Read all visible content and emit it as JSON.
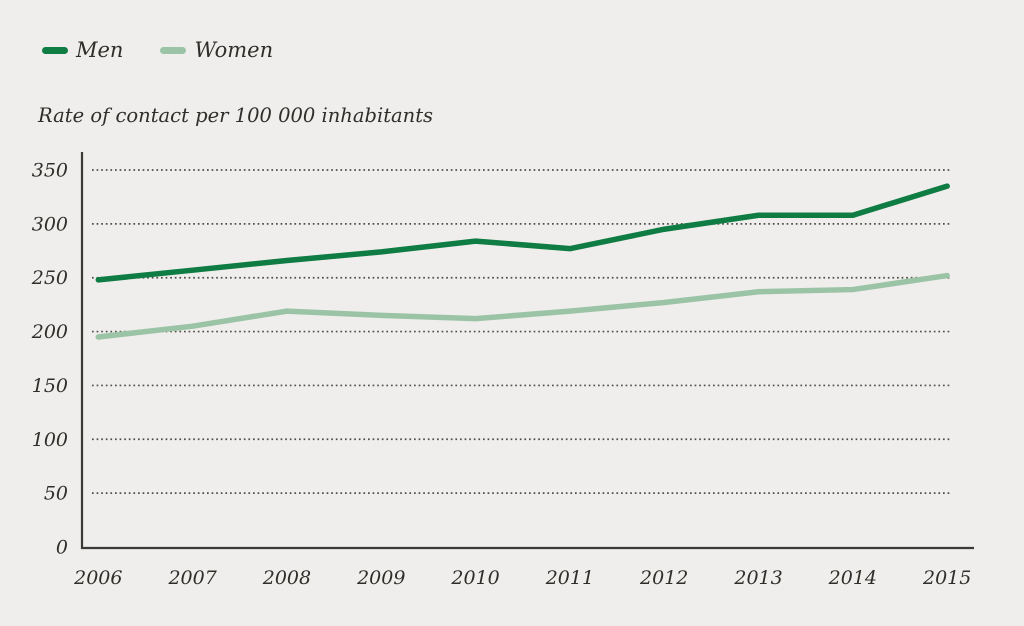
{
  "colors": {
    "background": "#f0eeec",
    "axis": "#3b3a36",
    "grid_dots": "#504e49",
    "text": "#2f2e2a",
    "men_line": "#0e7c43",
    "women_line": "#9bc4a7"
  },
  "legend": {
    "items": [
      {
        "label": "Men",
        "color": "#0e7c43"
      },
      {
        "label": "Women",
        "color": "#9bc4a7"
      }
    ]
  },
  "chart_data": {
    "type": "line",
    "title": "Rate of contact per 100 000 inhabitants",
    "xlabel": "",
    "ylabel": "Rate of contact per 100 000 inhabitants",
    "x": [
      "2006",
      "2007",
      "2008",
      "2009",
      "2010",
      "2011",
      "2012",
      "2013",
      "2014",
      "2015"
    ],
    "series": [
      {
        "name": "Men",
        "color": "#0e7c43",
        "values": [
          248,
          257,
          266,
          274,
          284,
          277,
          295,
          308,
          308,
          335
        ]
      },
      {
        "name": "Women",
        "color": "#9bc4a7",
        "values": [
          195,
          205,
          219,
          215,
          212,
          219,
          227,
          237,
          239,
          252
        ]
      }
    ],
    "ylim": [
      0,
      350
    ],
    "yticks": [
      0,
      50,
      100,
      150,
      200,
      250,
      300,
      350
    ],
    "grid": "horizontal-dotted",
    "legend_position": "top-left"
  }
}
